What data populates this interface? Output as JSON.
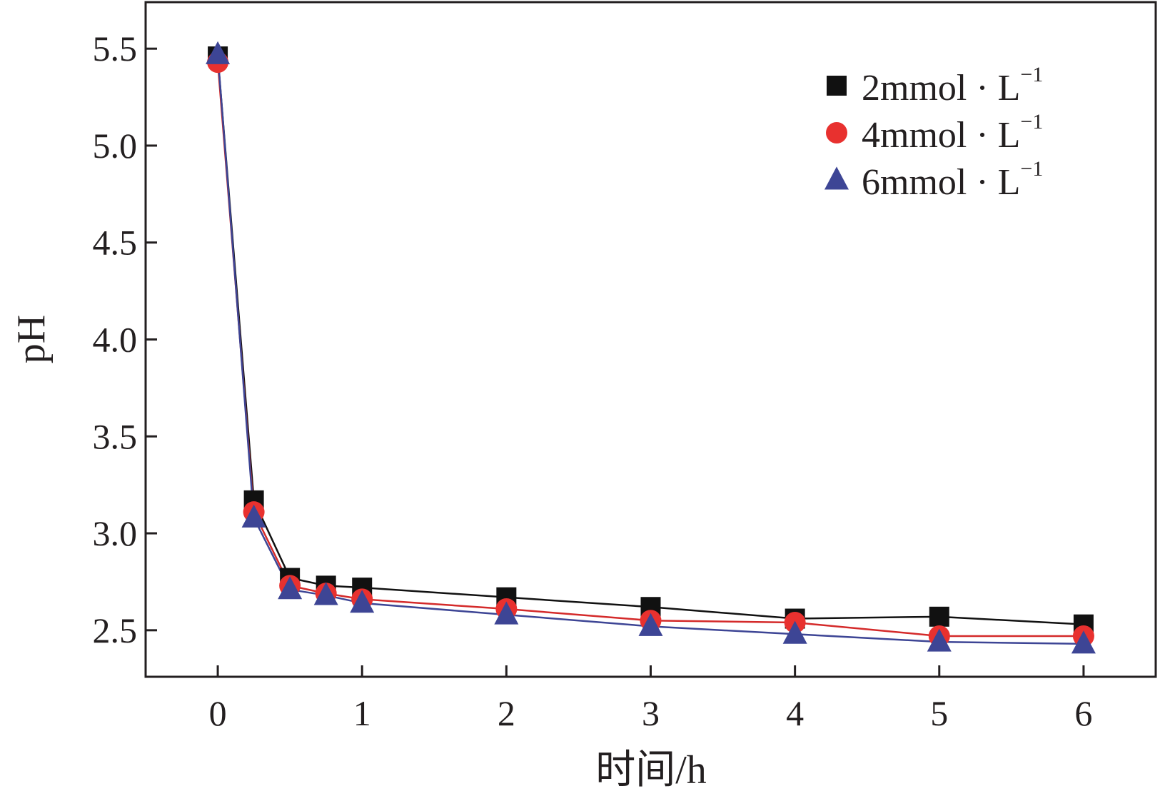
{
  "chart_data": {
    "type": "line",
    "title": "",
    "xlabel": "时间/h",
    "ylabel": "pH",
    "xlim": [
      -0.5,
      6.5
    ],
    "ylim": [
      2.26,
      5.74
    ],
    "x_ticks": [
      0,
      1,
      2,
      3,
      4,
      5,
      6
    ],
    "x_tick_labels": [
      "0",
      "1",
      "2",
      "3",
      "4",
      "5",
      "6"
    ],
    "y_ticks": [
      2.5,
      3.0,
      3.5,
      4.0,
      4.5,
      5.0,
      5.5
    ],
    "y_tick_labels": [
      "2.5",
      "3.0",
      "3.5",
      "4.0",
      "4.5",
      "5.0",
      "5.5"
    ],
    "grid": false,
    "legend_position": "top-right",
    "x": [
      0,
      0.25,
      0.5,
      0.75,
      1,
      2,
      3,
      4,
      5,
      6
    ],
    "series": [
      {
        "name": "2mmol · L",
        "name_superscript": "−1",
        "marker": "square",
        "color": "#111111",
        "line_color": "#111111",
        "values": [
          5.46,
          3.17,
          2.77,
          2.73,
          2.72,
          2.67,
          2.62,
          2.56,
          2.57,
          2.53
        ]
      },
      {
        "name": "4mmol · L",
        "name_superscript": "−1",
        "marker": "circle",
        "color": "#e8312f",
        "line_color": "#d42a2a",
        "values": [
          5.43,
          3.11,
          2.73,
          2.69,
          2.66,
          2.61,
          2.55,
          2.54,
          2.47,
          2.47
        ]
      },
      {
        "name": "6mmol · L",
        "name_superscript": "−1",
        "marker": "triangle",
        "color": "#3d4595",
        "line_color": "#3d4595",
        "values": [
          5.47,
          3.08,
          2.71,
          2.68,
          2.64,
          2.58,
          2.52,
          2.48,
          2.44,
          2.43
        ]
      }
    ]
  }
}
